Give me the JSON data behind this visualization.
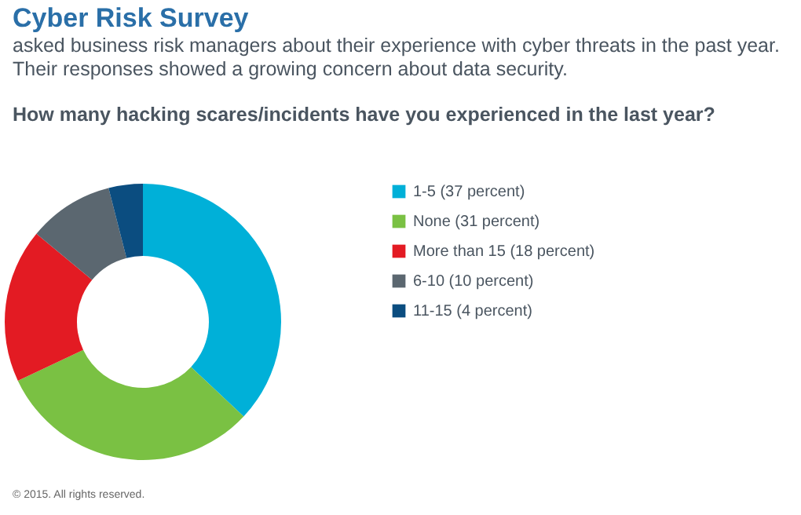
{
  "chart_data": {
    "type": "donut",
    "title": "Cyber Risk Survey",
    "subtitle": "asked business risk managers about their experience with cyber threats in the past year. Their responses showed a growing concern about data security.",
    "annotations": [
      "How many hacking scares/incidents have you experienced in the last year?",
      "© 2015. All rights reserved."
    ],
    "categories": [
      "1-5 (37 percent)",
      "None (31 percent)",
      "More than 15 (18 percent)",
      "6-10 (10 percent)",
      "11-15 (4 percent)"
    ],
    "values": [
      37,
      31,
      18,
      10,
      4
    ],
    "colors": [
      "#00b0d8",
      "#7ac143",
      "#e31b23",
      "#5b6770",
      "#0b4d80"
    ],
    "legend": "right"
  }
}
